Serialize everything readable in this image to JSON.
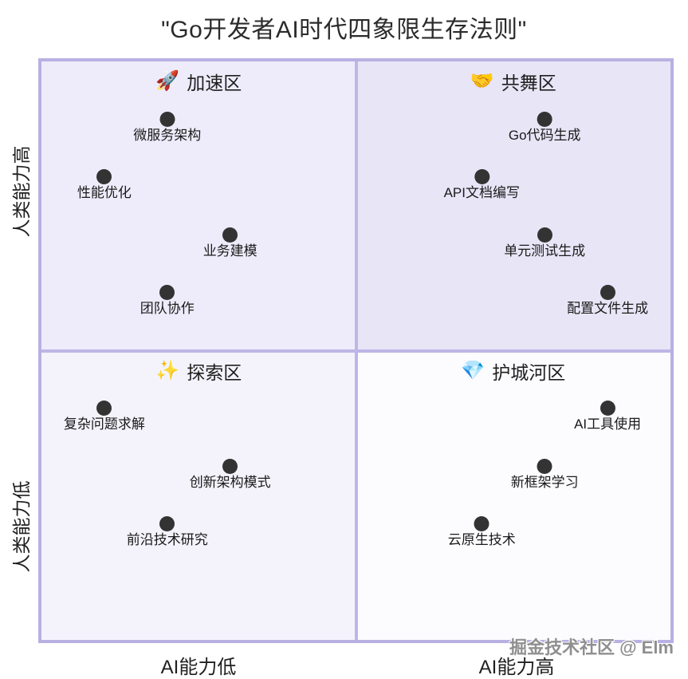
{
  "title": "\"Go开发者AI时代四象限生存法则\"",
  "watermark": "掘金技术社区 @ Elm",
  "axes": {
    "x_left": "AI能力低",
    "x_right": "AI能力高",
    "y_top": "人类能力高",
    "y_bottom": "人类能力低"
  },
  "quadrants": [
    {
      "icon": "🚀",
      "icon_name": "rocket-icon",
      "label": "加速区",
      "position": "top-left",
      "fill": "#EEECFA"
    },
    {
      "icon": "🤝",
      "icon_name": "handshake-icon",
      "label": "共舞区",
      "position": "top-right",
      "fill": "#E8E5F7"
    },
    {
      "icon": "✨",
      "icon_name": "sparkles-icon",
      "label": "探索区",
      "position": "bottom-left",
      "fill": "#F4F3FC"
    },
    {
      "icon": "💎",
      "icon_name": "gem-icon",
      "label": "护城河区",
      "position": "bottom-right",
      "fill": "#FCFBFE"
    }
  ],
  "colors": {
    "border": "#b9b0e2",
    "divider": "#beb6e6",
    "dot": "#333333",
    "title_text": "#2b2b2b",
    "watermark_text": "#8f8f8f"
  },
  "chart_data": {
    "type": "scatter",
    "subtype": "quadrant",
    "title": "\"Go开发者AI时代四象限生存法则\"",
    "x_axis": {
      "left_label": "AI能力低",
      "right_label": "AI能力高",
      "range": [
        0,
        1
      ]
    },
    "y_axis": {
      "bottom_label": "人类能力低",
      "top_label": "人类能力高",
      "range": [
        0,
        1
      ]
    },
    "grid": false,
    "legend": false,
    "points": [
      {
        "label": "微服务架构",
        "x": 0.2,
        "y": 0.9,
        "quadrant": "加速区"
      },
      {
        "label": "性能优化",
        "x": 0.1,
        "y": 0.8,
        "quadrant": "加速区"
      },
      {
        "label": "业务建模",
        "x": 0.3,
        "y": 0.7,
        "quadrant": "加速区"
      },
      {
        "label": "团队协作",
        "x": 0.2,
        "y": 0.6,
        "quadrant": "加速区"
      },
      {
        "label": "Go代码生成",
        "x": 0.8,
        "y": 0.9,
        "quadrant": "共舞区"
      },
      {
        "label": "API文档编写",
        "x": 0.7,
        "y": 0.8,
        "quadrant": "共舞区"
      },
      {
        "label": "单元测试生成",
        "x": 0.8,
        "y": 0.7,
        "quadrant": "共舞区"
      },
      {
        "label": "配置文件生成",
        "x": 0.9,
        "y": 0.6,
        "quadrant": "共舞区"
      },
      {
        "label": "复杂问题求解",
        "x": 0.1,
        "y": 0.4,
        "quadrant": "探索区"
      },
      {
        "label": "创新架构模式",
        "x": 0.3,
        "y": 0.3,
        "quadrant": "探索区"
      },
      {
        "label": "前沿技术研究",
        "x": 0.2,
        "y": 0.2,
        "quadrant": "探索区"
      },
      {
        "label": "AI工具使用",
        "x": 0.9,
        "y": 0.4,
        "quadrant": "护城河区"
      },
      {
        "label": "新框架学习",
        "x": 0.8,
        "y": 0.3,
        "quadrant": "护城河区"
      },
      {
        "label": "云原生技术",
        "x": 0.7,
        "y": 0.2,
        "quadrant": "护城河区"
      }
    ]
  }
}
